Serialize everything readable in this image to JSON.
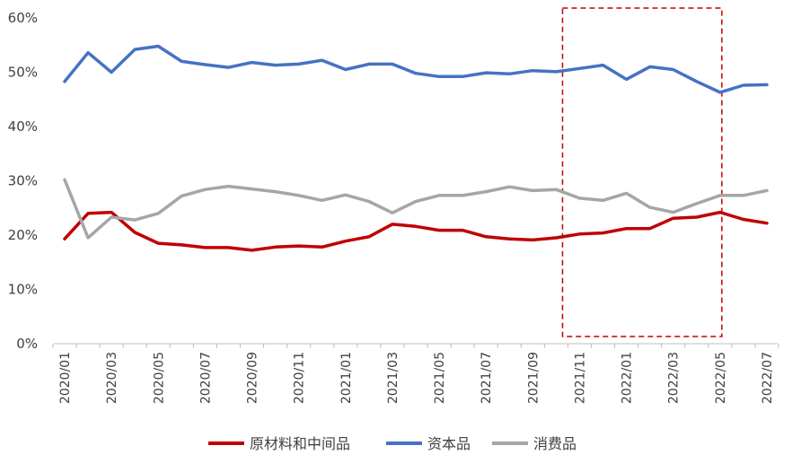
{
  "chart_data": {
    "type": "line",
    "x": [
      "2020/01",
      "2020/02",
      "2020/03",
      "2020/04",
      "2020/05",
      "2020/06",
      "2020/07",
      "2020/08",
      "2020/09",
      "2020/10",
      "2020/11",
      "2020/12",
      "2021/01",
      "2021/02",
      "2021/03",
      "2021/04",
      "2021/05",
      "2021/06",
      "2021/07",
      "2021/08",
      "2021/09",
      "2021/10",
      "2021/11",
      "2021/12",
      "2022/01",
      "2022/02",
      "2022/03",
      "2022/04",
      "2022/05",
      "2022/06",
      "2022/07"
    ],
    "x_tick_labels": [
      "2020/01",
      "2020/03",
      "2020/05",
      "2020/07",
      "2020/09",
      "2020/11",
      "2021/01",
      "2021/03",
      "2021/05",
      "2021/07",
      "2021/09",
      "2021/11",
      "2022/01",
      "2022/03",
      "2022/05",
      "2022/07"
    ],
    "y_tick_labels": [
      "0%",
      "10%",
      "20%",
      "30%",
      "40%",
      "50%",
      "60%"
    ],
    "ylim": [
      0,
      60
    ],
    "grid": false,
    "legend_position": "bottom",
    "series": [
      {
        "name": "原材料和中间品",
        "color": "#c00000",
        "values": [
          19.3,
          24.0,
          24.2,
          20.5,
          18.5,
          18.2,
          17.7,
          17.7,
          17.2,
          17.8,
          18.0,
          17.8,
          18.9,
          19.7,
          22.0,
          21.6,
          20.9,
          20.9,
          19.7,
          19.3,
          19.1,
          19.5,
          20.2,
          20.4,
          21.2,
          21.2,
          23.1,
          23.3,
          24.2,
          22.9,
          22.2
        ]
      },
      {
        "name": "资本品",
        "color": "#4472c4",
        "values": [
          48.3,
          53.6,
          50.0,
          54.2,
          54.8,
          52.0,
          51.4,
          50.9,
          51.8,
          51.3,
          51.5,
          52.2,
          50.5,
          51.5,
          51.5,
          49.8,
          49.2,
          49.2,
          49.9,
          49.7,
          50.3,
          50.1,
          50.7,
          51.3,
          48.7,
          51.0,
          50.5,
          48.3,
          46.3,
          47.6,
          47.7
        ]
      },
      {
        "name": "消费品",
        "color": "#a6a6a6",
        "values": [
          30.2,
          19.5,
          23.3,
          22.8,
          24.0,
          27.2,
          28.4,
          29.0,
          28.5,
          28.0,
          27.3,
          26.4,
          27.4,
          26.2,
          24.1,
          26.2,
          27.3,
          27.3,
          28.0,
          28.9,
          28.2,
          28.4,
          26.8,
          26.4,
          27.7,
          25.1,
          24.2,
          25.8,
          27.3,
          27.3,
          28.2
        ]
      }
    ],
    "highlight_box": {
      "from": "2021/11",
      "to": "2022/05"
    }
  }
}
